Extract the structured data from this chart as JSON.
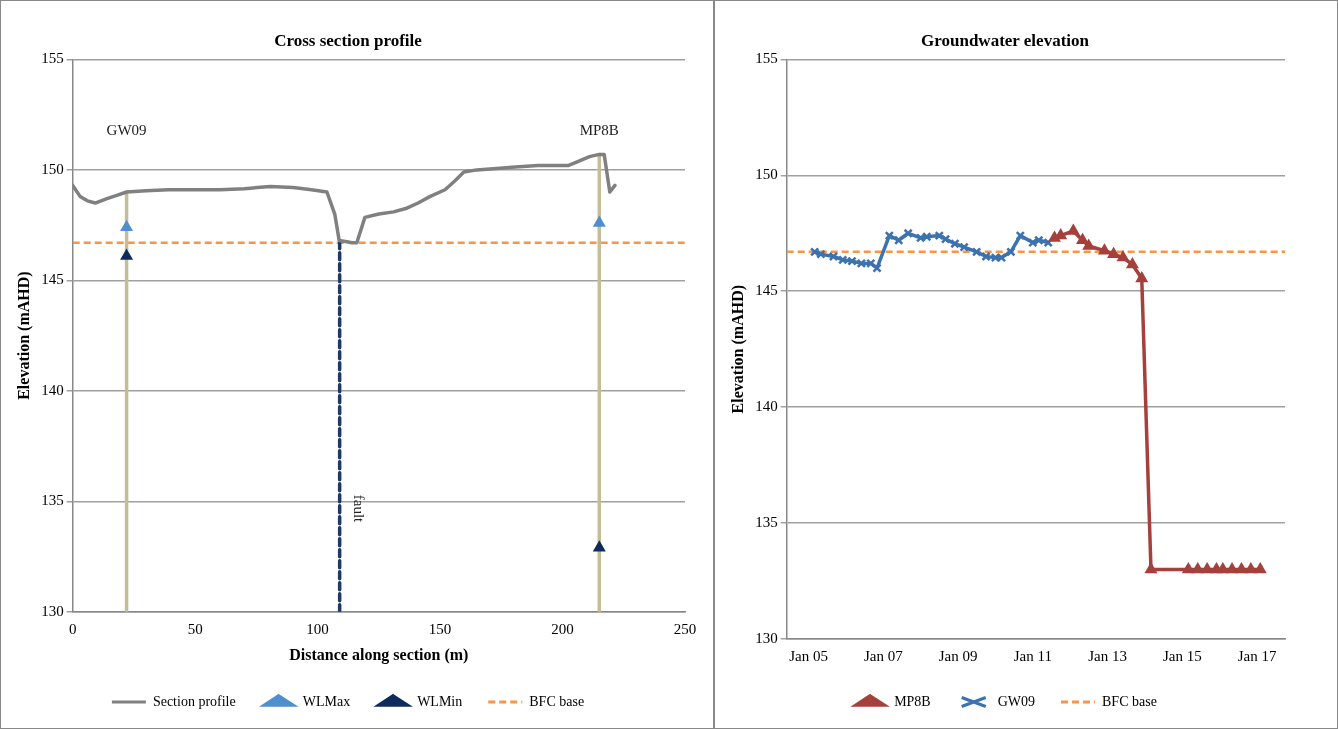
{
  "chart_data": [
    {
      "type": "line",
      "title": "Cross section profile",
      "xlabel": "Distance along section (m)",
      "ylabel": "Elevation (mAHD)",
      "xlim": [
        0,
        250
      ],
      "xticks": [
        0,
        50,
        100,
        150,
        200,
        250
      ],
      "ylim": [
        130,
        155
      ],
      "yticks": [
        130,
        135,
        140,
        145,
        150,
        155
      ],
      "grid": "y",
      "legend": "bottom",
      "series": [
        {
          "name": "Section profile",
          "color": "#808080",
          "marker": "none",
          "x": [
            0,
            3,
            6,
            9.2,
            14,
            18,
            22,
            30,
            39,
            50,
            60,
            70,
            80.7,
            90,
            97.5,
            103.8,
            107,
            108.8,
            112,
            114,
            116,
            119.3,
            125,
            131,
            136,
            141,
            146,
            152,
            156,
            159.7,
            165,
            177,
            190,
            196,
            202.5,
            206.7,
            211,
            215,
            217,
            219.3,
            221.4
          ],
          "values": [
            149.3,
            148.8,
            148.6,
            148.5,
            148.7,
            148.85,
            149.0,
            149.05,
            149.1,
            149.1,
            149.1,
            149.15,
            149.25,
            149.2,
            149.1,
            149.0,
            148.0,
            146.8,
            146.75,
            146.7,
            146.7,
            147.85,
            148.0,
            148.1,
            148.25,
            148.5,
            148.8,
            149.1,
            149.5,
            149.9,
            150.0,
            150.1,
            150.2,
            150.2,
            150.2,
            150.4,
            150.6,
            150.7,
            150.7,
            149.0,
            149.3
          ]
        },
        {
          "name": "WLMax",
          "type": "scatter",
          "color": "#4f8fd0",
          "marker": "triangle",
          "x": [
            22,
            215
          ],
          "values": [
            147.4,
            147.6
          ]
        },
        {
          "name": "WLMin",
          "type": "scatter",
          "color": "#0f2a5c",
          "marker": "triangle",
          "x": [
            22,
            215
          ],
          "values": [
            146.1,
            132.9
          ]
        },
        {
          "color": "#c4bd97",
          "marker": "none",
          "x": [
            22,
            22
          ],
          "values": [
            130,
            149.0
          ]
        },
        {
          "color": "#c4bd97",
          "marker": "none",
          "x": [
            215,
            215
          ],
          "values": [
            130,
            150.7
          ]
        },
        {
          "color": "#1f3864",
          "marker": "none",
          "line_style": "dashed",
          "x": [
            109,
            109
          ],
          "values": [
            130,
            146.7
          ]
        }
      ],
      "ref_lines": [
        {
          "axis": "y",
          "value": 146.7,
          "label": "BFC base",
          "color": "#f79646",
          "line_style": "dashed"
        }
      ],
      "annotations": [
        "GW09",
        "MP8B",
        "fault"
      ]
    },
    {
      "type": "line",
      "title": "Groundwater elevation",
      "ylabel": "Elevation (mAHD)",
      "xlim": [
        "2004-06",
        "2017-10"
      ],
      "xticks": [
        {
          "value": "2005-01",
          "label": "Jan 05"
        },
        {
          "value": "2007-01",
          "label": "Jan 07"
        },
        {
          "value": "2009-01",
          "label": "Jan 09"
        },
        {
          "value": "2011-01",
          "label": "Jan 11"
        },
        {
          "value": "2013-01",
          "label": "Jan 13"
        },
        {
          "value": "2015-01",
          "label": "Jan 15"
        },
        {
          "value": "2017-01",
          "label": "Jan 17"
        }
      ],
      "ylim": [
        130,
        155
      ],
      "yticks": [
        130,
        135,
        140,
        145,
        150,
        155
      ],
      "grid": "y",
      "legend": "bottom",
      "series": [
        {
          "name": "MP8B",
          "color": "#a5403c",
          "marker": "triangle",
          "x": [
            "2011-08",
            "2011-10",
            "2012-02",
            "2012-05",
            "2012-07",
            "2012-12",
            "2013-03",
            "2013-06",
            "2013-09",
            "2013-12",
            "2014-03",
            "2015-03",
            "2015-06",
            "2015-09",
            "2015-12",
            "2016-02",
            "2016-05",
            "2016-08",
            "2016-11",
            "2017-02"
          ],
          "values": [
            147.3,
            147.4,
            147.6,
            147.2,
            146.95,
            146.75,
            146.6,
            146.45,
            146.15,
            145.55,
            133.0,
            133.0,
            133.0,
            133.0,
            133.0,
            133.0,
            133.0,
            133.0,
            133.0,
            133.0
          ]
        },
        {
          "name": "GW09",
          "color": "#3d72b0",
          "marker": "cross",
          "x": [
            "2005-03",
            "2005-05",
            "2005-09",
            "2005-12",
            "2006-03",
            "2006-06",
            "2006-09",
            "2006-11",
            "2007-03",
            "2007-06",
            "2007-09",
            "2008-01",
            "2008-03",
            "2008-07",
            "2008-09",
            "2008-12",
            "2009-03",
            "2009-07",
            "2009-10",
            "2010-01",
            "2010-03",
            "2010-06",
            "2010-09",
            "2011-01",
            "2011-03",
            "2011-06"
          ],
          "values": [
            146.7,
            146.6,
            146.5,
            146.35,
            146.3,
            146.2,
            146.2,
            146.0,
            147.4,
            147.2,
            147.5,
            147.3,
            147.35,
            147.4,
            147.25,
            147.05,
            146.9,
            146.7,
            146.5,
            146.45,
            146.45,
            146.7,
            147.4,
            147.1,
            147.2,
            147.1
          ]
        }
      ],
      "ref_lines": [
        {
          "axis": "y",
          "value": 146.7,
          "label": "BFC base",
          "color": "#f79646",
          "line_style": "dashed"
        }
      ]
    }
  ]
}
